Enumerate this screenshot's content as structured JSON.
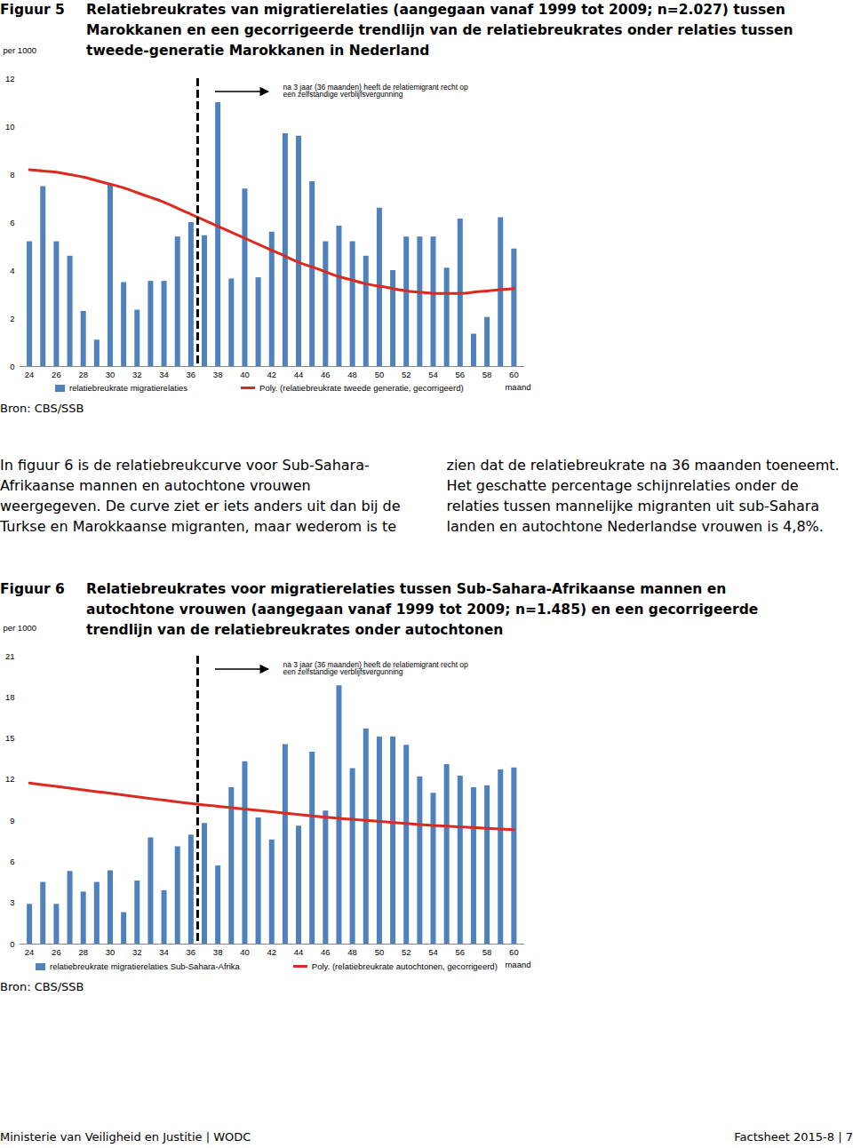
{
  "chart_data": [
    {
      "type": "bar",
      "title": "Relatiebreukrates van migratierelaties (aangegaan vanaf 1999 tot 2009; n=2.027) tussen Marokkanen en een gecorrigeerde trendlijn van de relatiebreukrates onder relaties tussen tweede-generatie Marokkanen in Nederland",
      "x_label": "maand",
      "y_label": "per 1000",
      "x": [
        24,
        25,
        26,
        27,
        28,
        29,
        30,
        31,
        32,
        33,
        34,
        35,
        36,
        37,
        38,
        39,
        40,
        41,
        42,
        43,
        44,
        45,
        46,
        47,
        48,
        49,
        50,
        51,
        52,
        53,
        54,
        55,
        56,
        57,
        58,
        59,
        60
      ],
      "series": [
        {
          "name": "relatiebreukrate migratierelaties",
          "type": "bar",
          "color": "#4f81bd",
          "values": [
            5.2,
            7.5,
            5.2,
            4.6,
            2.3,
            1.1,
            7.6,
            3.5,
            2.35,
            3.55,
            3.55,
            5.4,
            6.0,
            5.45,
            11.0,
            3.65,
            7.4,
            3.7,
            5.6,
            9.7,
            9.6,
            7.7,
            5.2,
            5.85,
            5.2,
            4.6,
            6.6,
            4.0,
            5.4,
            5.4,
            5.4,
            4.1,
            6.15,
            1.35,
            2.05,
            6.2,
            4.9
          ]
        },
        {
          "name": "Poly. (relatiebreukrate tweede generatie, gecorrigeerd)",
          "type": "line",
          "color": "#dc2a1e",
          "values": [
            8.2,
            8.15,
            8.1,
            8.0,
            7.9,
            7.75,
            7.6,
            7.45,
            7.25,
            7.05,
            6.85,
            6.6,
            6.35,
            6.1,
            5.85,
            5.6,
            5.35,
            5.1,
            4.85,
            4.6,
            4.35,
            4.15,
            3.95,
            3.75,
            3.6,
            3.45,
            3.35,
            3.25,
            3.15,
            3.1,
            3.05,
            3.05,
            3.05,
            3.1,
            3.15,
            3.2,
            3.25
          ]
        }
      ],
      "xlim": [
        23.3,
        60.8
      ],
      "xticks": [
        24,
        26,
        28,
        30,
        32,
        34,
        36,
        38,
        40,
        42,
        44,
        46,
        48,
        50,
        52,
        54,
        56,
        58,
        60
      ],
      "ylim": [
        0,
        12
      ],
      "yticks": [
        0,
        2,
        4,
        6,
        8,
        10,
        12
      ],
      "grid": false,
      "legend": "bottom",
      "annotations": [
        {
          "x": 36.5,
          "text": "na 3 jaar (36 maanden) heeft de relatiemigrant recht op\neen zelfstandige verblijfsvergunning"
        }
      ]
    },
    {
      "type": "bar",
      "title": "Relatiebreukrates voor migratierelaties tussen Sub-Sahara-Afrikaanse mannen en autochtone vrouwen (aangegaan vanaf 1999 tot 2009; n=1.485) en een gecorrigeerde trendlijn van de relatiebreukrates onder autochtonen",
      "x_label": "maand",
      "y_label": "per 1000",
      "x": [
        24,
        25,
        26,
        27,
        28,
        29,
        30,
        31,
        32,
        33,
        34,
        35,
        36,
        37,
        38,
        39,
        40,
        41,
        42,
        43,
        44,
        45,
        46,
        47,
        48,
        49,
        50,
        51,
        52,
        53,
        54,
        55,
        56,
        57,
        58,
        59,
        60
      ],
      "series": [
        {
          "name": "relatiebreukrate migratierelaties Sub-Sahara-Afrika",
          "type": "bar",
          "color": "#4f81bd",
          "values": [
            2.9,
            4.5,
            2.9,
            5.3,
            3.8,
            4.5,
            5.35,
            2.3,
            4.6,
            7.75,
            3.9,
            7.1,
            7.95,
            8.8,
            5.7,
            11.4,
            13.3,
            9.2,
            7.6,
            14.55,
            8.6,
            14.0,
            9.7,
            18.85,
            12.8,
            15.7,
            15.1,
            15.1,
            14.5,
            12.2,
            11.0,
            13.1,
            12.25,
            11.4,
            11.55,
            12.7,
            12.85
          ]
        },
        {
          "name": "Poly. (relatiebreukrate autochtonen, gecorrigeerd)",
          "type": "line",
          "color": "#dc2a1e",
          "values": [
            11.75,
            11.62,
            11.5,
            11.37,
            11.25,
            11.12,
            11.0,
            10.87,
            10.75,
            10.62,
            10.5,
            10.37,
            10.25,
            10.15,
            10.05,
            9.95,
            9.85,
            9.75,
            9.65,
            9.55,
            9.45,
            9.35,
            9.25,
            9.17,
            9.1,
            9.02,
            8.95,
            8.87,
            8.8,
            8.72,
            8.65,
            8.6,
            8.55,
            8.5,
            8.45,
            8.4,
            8.35
          ]
        }
      ],
      "xlim": [
        23.3,
        60.8
      ],
      "xticks": [
        24,
        26,
        28,
        30,
        32,
        34,
        36,
        38,
        40,
        42,
        44,
        46,
        48,
        50,
        52,
        54,
        56,
        58,
        60
      ],
      "ylim": [
        0,
        21
      ],
      "yticks": [
        0,
        3,
        6,
        9,
        12,
        15,
        18,
        21
      ],
      "grid": false,
      "legend": "bottom",
      "annotations": [
        {
          "x": 36.5,
          "text": "na 3 jaar (36 maanden) heeft de relatiemigrant recht op\neen zelfstandige verblijfsvergunning"
        }
      ]
    }
  ],
  "document": {
    "figures": [
      {
        "label": "Figuur 5",
        "source": "Bron: CBS/SSB"
      },
      {
        "label": "Figuur 6",
        "source": "Bron: CBS/SSB"
      }
    ],
    "paragraph": "In figuur 6 is de relatiebreukcurve voor Sub-Sahara-Afrikaanse mannen en autochtone vrouwen weergegeven. De curve ziet er iets anders uit dan bij de Turkse en Marokkaanse migranten, maar wederom is te zien dat de relatiebreukrate na 36 maanden toeneemt. Het geschatte percentage schijnrelaties onder de relaties tussen mannelijke migranten uit sub-Sahara landen en autochtone Nederlandse vrouwen is 4,8%.",
    "footer": {
      "left": "Ministerie van Veiligheid en Justitie | WODC",
      "right": "Factsheet 2015-8 | 7"
    }
  }
}
